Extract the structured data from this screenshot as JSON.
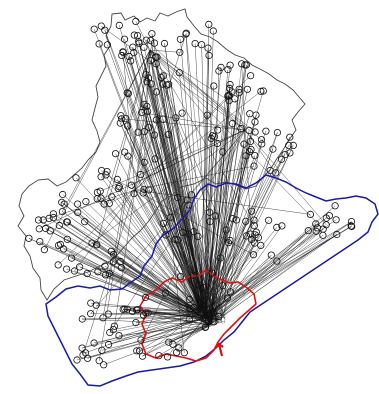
{
  "colors": {
    "background": "#ffffff",
    "outer_boundary": "#444444",
    "middle_boundary": "#1a1aa8",
    "inner_boundary": "#e01010",
    "links": "#111111",
    "nodes": "#111111"
  }
}
